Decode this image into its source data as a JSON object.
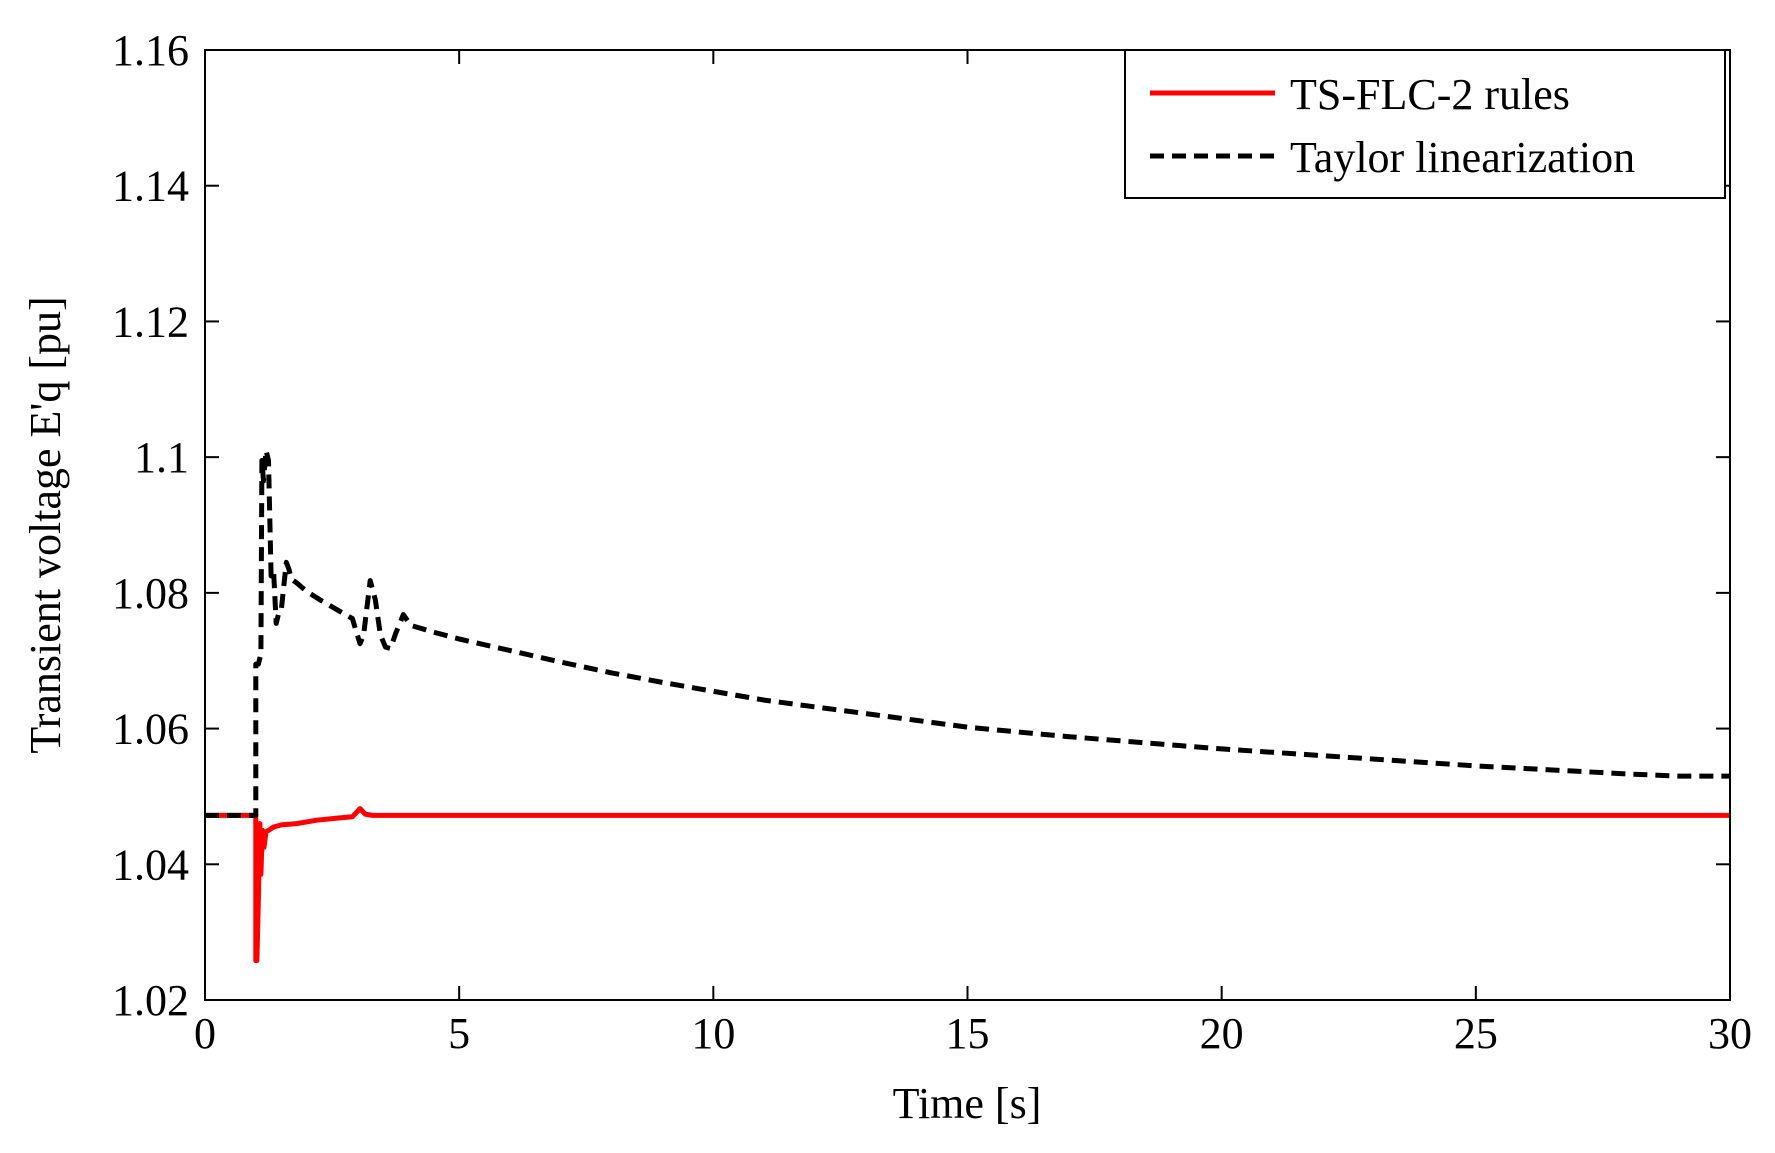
{
  "chart_data": {
    "type": "line",
    "title": "",
    "xlabel": "Time [s]",
    "ylabel": "Transient voltage E'q [pu]",
    "xlim": [
      0,
      30
    ],
    "ylim": [
      1.02,
      1.16
    ],
    "xticks": [
      0,
      5,
      10,
      15,
      20,
      25,
      30
    ],
    "xtick_labels": [
      "0",
      "5",
      "10",
      "15",
      "20",
      "25",
      "30"
    ],
    "yticks": [
      1.02,
      1.04,
      1.06,
      1.08,
      1.1,
      1.12,
      1.14,
      1.16
    ],
    "ytick_labels": [
      "1.02",
      "1.04",
      "1.06",
      "1.08",
      "1.1",
      "1.12",
      "1.14",
      "1.16"
    ],
    "grid": false,
    "legend_position": "top-right",
    "series": [
      {
        "name": "TS-FLC-2 rules",
        "color": "#ff0000",
        "style": "solid",
        "x": [
          0,
          1.0,
          1.0,
          1.02,
          1.05,
          1.08,
          1.1,
          1.13,
          1.16,
          1.2,
          1.25,
          1.35,
          1.5,
          1.8,
          2.2,
          2.6,
          2.9,
          3.0,
          3.05,
          3.15,
          3.3,
          5,
          10,
          15,
          20,
          25,
          30
        ],
        "y": [
          1.0472,
          1.0472,
          1.0258,
          1.0258,
          1.035,
          1.046,
          1.0385,
          1.045,
          1.0425,
          1.0448,
          1.045,
          1.0455,
          1.0458,
          1.046,
          1.0465,
          1.0468,
          1.047,
          1.0478,
          1.0482,
          1.0474,
          1.0472,
          1.0472,
          1.0472,
          1.0472,
          1.0472,
          1.0472,
          1.0472
        ]
      },
      {
        "name": "Taylor linearization",
        "color": "#000000",
        "style": "dashed",
        "x": [
          0,
          1.0,
          1.0,
          1.05,
          1.1,
          1.12,
          1.15,
          1.2,
          1.25,
          1.3,
          1.35,
          1.4,
          1.45,
          1.5,
          1.55,
          1.6,
          1.65,
          1.7,
          1.8,
          2.0,
          2.3,
          2.6,
          2.9,
          3.05,
          3.12,
          3.25,
          3.35,
          3.45,
          3.55,
          3.65,
          3.75,
          3.9,
          4.05,
          4.5,
          5,
          6,
          7,
          8,
          9,
          10,
          11,
          12,
          13,
          14,
          15,
          16,
          17,
          18,
          19,
          20,
          21,
          22,
          23,
          24,
          25,
          26,
          27,
          28,
          29,
          30
        ],
        "y": [
          1.0472,
          1.0472,
          1.0695,
          1.0695,
          1.071,
          1.0995,
          1.0965,
          1.101,
          1.0995,
          1.0825,
          1.0832,
          1.0755,
          1.077,
          1.0775,
          1.081,
          1.0845,
          1.0835,
          1.082,
          1.0815,
          1.0802,
          1.0788,
          1.0775,
          1.0762,
          1.0725,
          1.0738,
          1.0818,
          1.079,
          1.0738,
          1.072,
          1.0718,
          1.074,
          1.0768,
          1.0752,
          1.0742,
          1.0732,
          1.0715,
          1.0698,
          1.0682,
          1.0668,
          1.0655,
          1.0642,
          1.0632,
          1.0622,
          1.0612,
          1.0602,
          1.0595,
          1.0588,
          1.0582,
          1.0576,
          1.057,
          1.0565,
          1.056,
          1.0555,
          1.055,
          1.0545,
          1.0541,
          1.0537,
          1.0533,
          1.053,
          1.053
        ]
      }
    ]
  }
}
